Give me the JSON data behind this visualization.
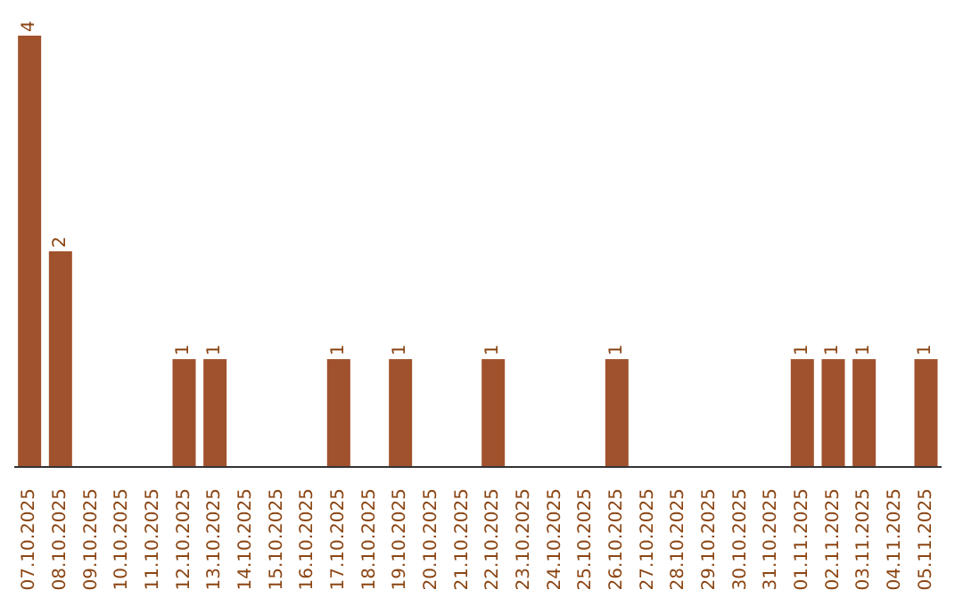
{
  "chart_data": {
    "type": "bar",
    "categories": [
      "07.10.2025",
      "08.10.2025",
      "09.10.2025",
      "10.10.2025",
      "11.10.2025",
      "12.10.2025",
      "13.10.2025",
      "14.10.2025",
      "15.10.2025",
      "16.10.2025",
      "17.10.2025",
      "18.10.2025",
      "19.10.2025",
      "20.10.2025",
      "21.10.2025",
      "22.10.2025",
      "23.10.2025",
      "24.10.2025",
      "25.10.2025",
      "26.10.2025",
      "27.10.2025",
      "28.10.2025",
      "29.10.2025",
      "30.10.2025",
      "31.10.2025",
      "01.11.2025",
      "02.11.2025",
      "03.11.2025",
      "04.11.2025",
      "05.11.2025"
    ],
    "values": [
      4,
      2,
      0,
      0,
      0,
      1,
      1,
      0,
      0,
      0,
      1,
      0,
      1,
      0,
      0,
      1,
      0,
      0,
      0,
      1,
      0,
      0,
      0,
      0,
      0,
      1,
      1,
      1,
      0,
      1
    ],
    "value_labels": [
      "4",
      "2",
      null,
      null,
      null,
      "1",
      "1",
      null,
      null,
      null,
      "1",
      null,
      "1",
      null,
      null,
      "1",
      null,
      null,
      null,
      "1",
      null,
      null,
      null,
      null,
      null,
      "1",
      "1",
      "1",
      null,
      "1"
    ],
    "color": "#a0522d",
    "grid": false,
    "legend": false
  }
}
